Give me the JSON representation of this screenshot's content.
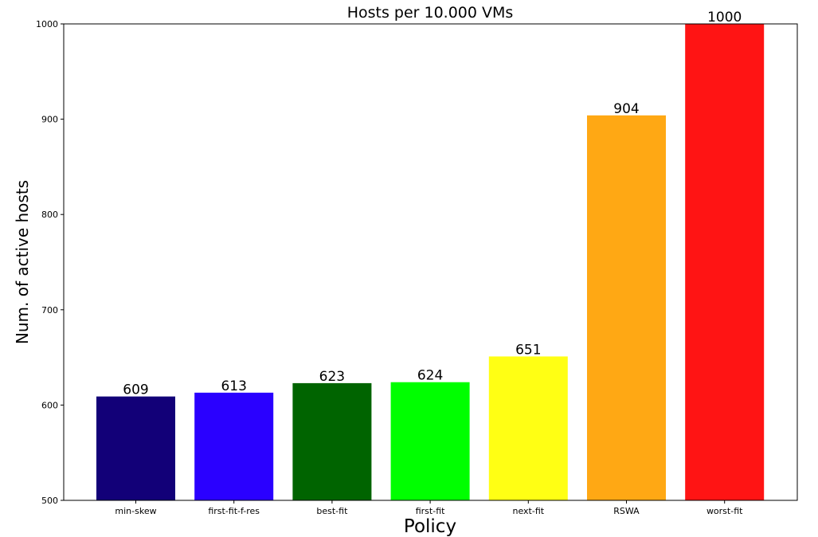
{
  "chart_data": {
    "type": "bar",
    "title": "Hosts per 10.000 VMs",
    "xlabel": "Policy",
    "ylabel": "Num. of active hosts",
    "categories": [
      "min-skew",
      "first-fit-f-res",
      "best-fit",
      "first-fit",
      "next-fit",
      "RSWA",
      "worst-fit"
    ],
    "values": [
      609,
      613,
      623,
      624,
      651,
      904,
      1000
    ],
    "colors": [
      "#120078",
      "#2a00ff",
      "#006400",
      "#00ff00",
      "#ffff14",
      "#ffa814",
      "#ff1414"
    ],
    "ylim": [
      500,
      1000
    ],
    "yticks": [
      500,
      600,
      700,
      800,
      900,
      1000
    ],
    "grid": false,
    "legend": false
  }
}
